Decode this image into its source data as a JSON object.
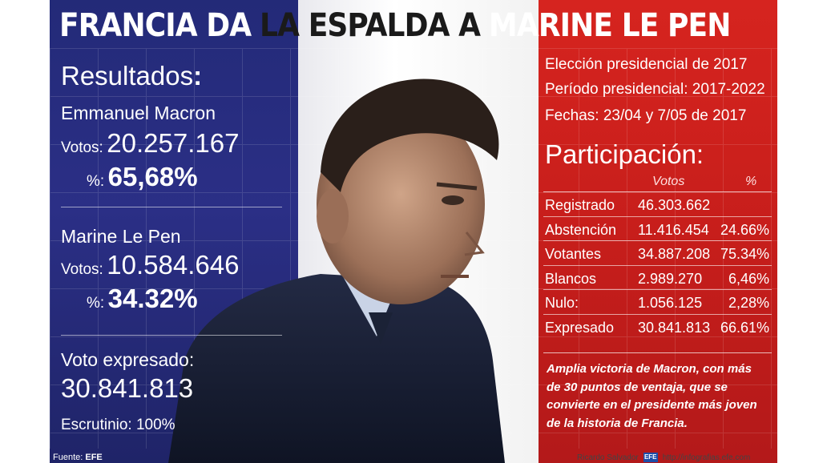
{
  "title": {
    "part1": "FRANCIA DA",
    "part2": "LA ESPALDA A",
    "part3": "MARINE LE PEN"
  },
  "left": {
    "heading": "Resultados",
    "heading_colon": ":",
    "macron": {
      "name": "Emmanuel Macron",
      "votes_label": "Votos:",
      "votes": "20.257.167",
      "pct_label": "%:",
      "pct": "65,68%"
    },
    "lepen": {
      "name": "Marine Le Pen",
      "votes_label": "Votos:",
      "votes": "10.584.646",
      "pct_label": "%:",
      "pct": "34.32%"
    },
    "voto_label": "Voto expresado:",
    "voto_value": "30.841.813",
    "escrutinio": "Escrutinio: 100%",
    "fuente_label": "Fuente:",
    "fuente_value": "EFE"
  },
  "right": {
    "line1": "Elección presidencial de 2017",
    "line2": "Período presidencial: 2017-2022",
    "line3": "Fechas: 23/04 y 7/05 de 2017",
    "participation_title": "Participación:",
    "table": {
      "headers": [
        "Votos",
        "%"
      ],
      "rows": [
        [
          "Registrado",
          "46.303.662",
          ""
        ],
        [
          "Abstención",
          "11.416.454",
          "24.66%"
        ],
        [
          "Votantes",
          "34.887.208",
          "75.34%"
        ],
        [
          "Blancos",
          "2.989.270",
          "6,46%"
        ],
        [
          "Nulo:",
          "1.056.125",
          "2,28%"
        ],
        [
          "Expresado",
          "30.841.813",
          "66.61%"
        ]
      ]
    },
    "summary_lines": [
      "Amplia victoria de Macron, con más",
      "de 30 puntos de ventaja, que se",
      "convierte en el presidente más joven",
      "de la historia de Francia."
    ]
  },
  "credit": {
    "author": "Ricardo Salvador",
    "logo_text": "EFE",
    "url": "http://infografias.efe.com"
  },
  "colors": {
    "blue": "#2b2f86",
    "red": "#c71e1b",
    "white": "#ffffff"
  },
  "icons": [
    "efe-logo-icon"
  ]
}
